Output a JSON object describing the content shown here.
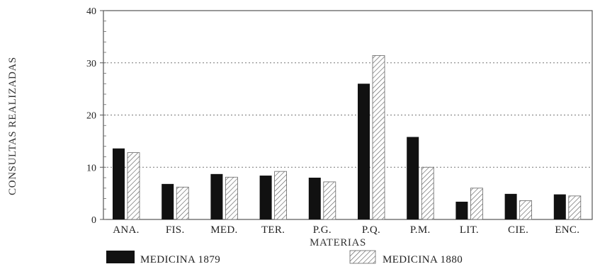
{
  "chart_data": {
    "type": "bar",
    "title": "",
    "xlabel": "MATERIAS",
    "ylabel": "CONSULTAS REALIZADAS",
    "ylim": [
      0,
      40
    ],
    "yticks": [
      0,
      10,
      20,
      30,
      40
    ],
    "grid": true,
    "legend_position": "bottom",
    "categories": [
      "ANA.",
      "FIS.",
      "MED.",
      "TER.",
      "P.G.",
      "P.Q.",
      "P.M.",
      "LIT.",
      "CIE.",
      "ENC."
    ],
    "series": [
      {
        "name": "MEDICINA 1879",
        "style": "solid",
        "color": "#111111",
        "values": [
          13.6,
          6.8,
          8.7,
          8.4,
          8.0,
          26.0,
          15.8,
          3.4,
          4.9,
          4.8
        ]
      },
      {
        "name": "MEDICINA 1880",
        "style": "hatched",
        "color": "#444444",
        "values": [
          12.8,
          6.2,
          8.1,
          9.2,
          7.2,
          31.4,
          10.0,
          6.0,
          3.6,
          4.5
        ]
      }
    ]
  }
}
